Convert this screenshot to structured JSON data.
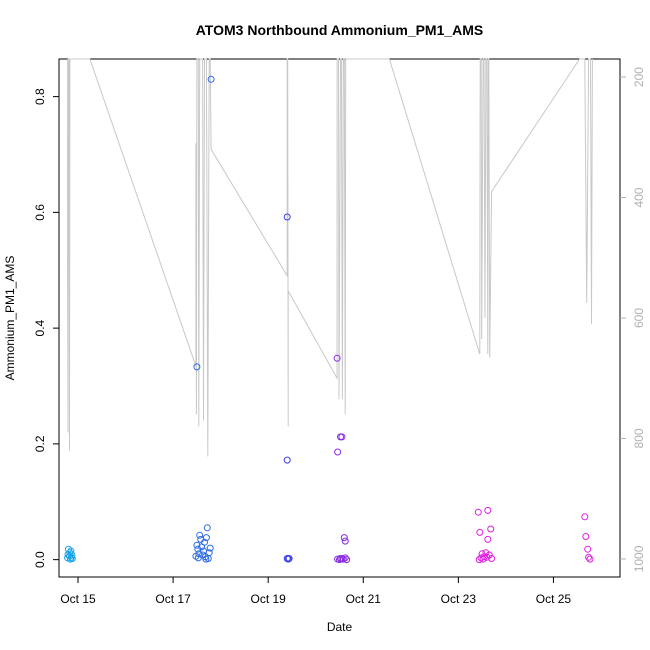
{
  "chart_data": {
    "type": "scatter",
    "title": "ATOM3 Northbound Ammonium_PM1_AMS",
    "xlabel": "Date",
    "ylabel": "Ammonium_PM1_AMS",
    "xlim": [
      14.6,
      26.4
    ],
    "ylim": [
      -0.03,
      0.865
    ],
    "x_ticks": [
      15,
      17,
      19,
      21,
      23,
      25
    ],
    "x_tick_labels": [
      "Oct 15",
      "Oct 17",
      "Oct 19",
      "Oct 21",
      "Oct 23",
      "Oct 25"
    ],
    "y_ticks": [
      0.0,
      0.2,
      0.4,
      0.6,
      0.8
    ],
    "y_tick_labels": [
      "0.0",
      "0.2",
      "0.4",
      "0.6",
      "0.8"
    ],
    "y2_label": "",
    "y2_lim": [
      1030,
      170
    ],
    "y2_ticks": [
      200,
      400,
      600,
      800,
      1000
    ],
    "y2_tick_labels": [
      "200",
      "400",
      "600",
      "800",
      "1000"
    ],
    "grid": false,
    "legend": "none",
    "colors": {
      "line": "#c8c8c8",
      "y2_ticks": "#b0b0b0"
    },
    "series": [
      {
        "color": "#1aa3e8",
        "points": [
          [
            14.78,
            0.003
          ],
          [
            14.8,
            0.018
          ],
          [
            14.82,
            0.006
          ],
          [
            14.84,
            0.001
          ],
          [
            14.85,
            0.015
          ],
          [
            14.86,
            0.004
          ],
          [
            14.87,
            0.008
          ],
          [
            14.79,
            0.009
          ],
          [
            14.83,
            0.012
          ],
          [
            14.88,
            0.002
          ]
        ]
      },
      {
        "color": "#2f6be8",
        "points": [
          [
            17.5,
            0.333
          ],
          [
            17.8,
            0.83
          ],
          [
            17.5,
            0.025
          ],
          [
            17.52,
            0.018
          ],
          [
            17.54,
            0.01
          ],
          [
            17.56,
            0.042
          ],
          [
            17.58,
            0.035
          ],
          [
            17.6,
            0.022
          ],
          [
            17.62,
            0.008
          ],
          [
            17.64,
            0.015
          ],
          [
            17.66,
            0.03
          ],
          [
            17.68,
            0.005
          ],
          [
            17.7,
            0.038
          ],
          [
            17.72,
            0.055
          ],
          [
            17.74,
            0.002
          ],
          [
            17.76,
            0.012
          ],
          [
            17.78,
            0.02
          ],
          [
            17.48,
            0.006
          ],
          [
            17.53,
            0.003
          ],
          [
            17.69,
            0.001
          ]
        ]
      },
      {
        "color": "#3b3bf0",
        "points": [
          [
            19.4,
            0.592
          ],
          [
            19.4,
            0.172
          ],
          [
            19.4,
            0.002
          ],
          [
            19.42,
            0.001
          ],
          [
            19.44,
            0.002
          ]
        ]
      },
      {
        "color": "#8a2be2",
        "points": [
          [
            20.45,
            0.348
          ],
          [
            20.46,
            0.186
          ],
          [
            20.52,
            0.212
          ],
          [
            20.55,
            0.212
          ],
          [
            20.6,
            0.038
          ],
          [
            20.62,
            0.032
          ],
          [
            20.46,
            0.001
          ],
          [
            20.5,
            0.0
          ],
          [
            20.55,
            0.002
          ],
          [
            20.58,
            0.001
          ],
          [
            20.62,
            0.003
          ],
          [
            20.65,
            0.0
          ],
          [
            20.52,
            0.002
          ]
        ]
      },
      {
        "color": "#e020e0",
        "points": [
          [
            23.42,
            0.082
          ],
          [
            23.62,
            0.085
          ],
          [
            23.45,
            0.047
          ],
          [
            23.68,
            0.053
          ],
          [
            23.62,
            0.035
          ],
          [
            23.5,
            0.01
          ],
          [
            23.55,
            0.005
          ],
          [
            23.48,
            0.003
          ],
          [
            23.58,
            0.012
          ],
          [
            23.52,
            0.001
          ],
          [
            23.65,
            0.008
          ],
          [
            23.7,
            0.002
          ],
          [
            23.44,
            0.0
          ],
          [
            23.6,
            0.004
          ],
          [
            25.66,
            0.074
          ],
          [
            25.68,
            0.04
          ],
          [
            25.72,
            0.018
          ],
          [
            25.74,
            0.004
          ],
          [
            25.77,
            0.001
          ]
        ]
      }
    ],
    "line_series": {
      "axis": "y2",
      "points": [
        [
          14.78,
          170
        ],
        [
          14.78,
          500
        ],
        [
          14.79,
          790
        ],
        [
          14.8,
          170
        ],
        [
          14.81,
          170
        ],
        [
          14.82,
          820
        ],
        [
          14.83,
          170
        ],
        [
          15.25,
          170
        ],
        [
          17.48,
          680
        ],
        [
          17.48,
          310
        ],
        [
          17.49,
          760
        ],
        [
          17.5,
          170
        ],
        [
          17.53,
          170
        ],
        [
          17.54,
          780
        ],
        [
          17.56,
          170
        ],
        [
          17.62,
          170
        ],
        [
          17.64,
          770
        ],
        [
          17.66,
          170
        ],
        [
          17.7,
          170
        ],
        [
          17.73,
          830
        ],
        [
          17.76,
          170
        ],
        [
          17.78,
          170
        ],
        [
          17.8,
          320
        ],
        [
          19.4,
          530
        ],
        [
          19.4,
          170
        ],
        [
          19.41,
          170
        ],
        [
          19.42,
          780
        ],
        [
          19.42,
          555
        ],
        [
          20.45,
          700
        ],
        [
          20.45,
          170
        ],
        [
          20.48,
          170
        ],
        [
          20.49,
          735
        ],
        [
          20.52,
          170
        ],
        [
          20.54,
          170
        ],
        [
          20.56,
          735
        ],
        [
          20.58,
          170
        ],
        [
          20.6,
          170
        ],
        [
          20.62,
          760
        ],
        [
          20.63,
          170
        ],
        [
          21.55,
          170
        ],
        [
          23.45,
          660
        ],
        [
          23.46,
          170
        ],
        [
          23.48,
          170
        ],
        [
          23.49,
          635
        ],
        [
          23.52,
          170
        ],
        [
          23.54,
          170
        ],
        [
          23.56,
          600
        ],
        [
          23.58,
          170
        ],
        [
          23.6,
          170
        ],
        [
          23.62,
          660
        ],
        [
          23.63,
          170
        ],
        [
          23.64,
          170
        ],
        [
          23.66,
          665
        ],
        [
          23.7,
          390
        ],
        [
          25.55,
          170
        ],
        [
          25.66,
          170
        ],
        [
          25.7,
          575
        ],
        [
          25.74,
          170
        ],
        [
          25.78,
          170
        ],
        [
          25.8,
          610
        ],
        [
          25.82,
          170
        ]
      ]
    }
  }
}
